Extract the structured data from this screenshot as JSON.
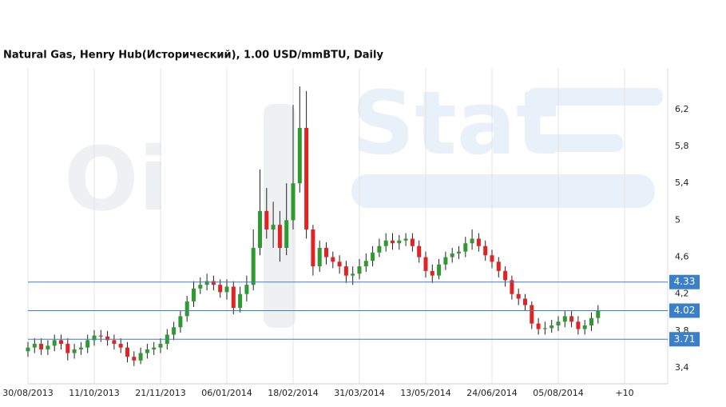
{
  "chart_data": {
    "type": "candlestick",
    "title": "Natural Gas, Henry Hub(Исторический), 1.00 USD/mmBTU, Daily",
    "watermark": [
      "Oi",
      "Stat"
    ],
    "categories": [
      "30/08/2013",
      null,
      null,
      null,
      null,
      null,
      null,
      null,
      null,
      null,
      "11/10/2013",
      null,
      null,
      null,
      null,
      null,
      null,
      null,
      null,
      null,
      "21/11/2013",
      null,
      null,
      null,
      null,
      null,
      null,
      null,
      null,
      null,
      "06/01/2014",
      null,
      null,
      null,
      null,
      null,
      null,
      null,
      null,
      null,
      "18/02/2014",
      null,
      null,
      null,
      null,
      null,
      null,
      null,
      null,
      null,
      "31/03/2014",
      null,
      null,
      null,
      null,
      null,
      null,
      null,
      null,
      null,
      "13/05/2014",
      null,
      null,
      null,
      null,
      null,
      null,
      null,
      null,
      null,
      "24/06/2014",
      null,
      null,
      null,
      null,
      null,
      null,
      null,
      null,
      null,
      "05/08/2014",
      null,
      null,
      null,
      null,
      null,
      null,
      null,
      null,
      null,
      "+10"
    ],
    "open": [
      3.58,
      3.62,
      3.66,
      3.6,
      3.64,
      3.7,
      3.66,
      3.56,
      3.6,
      3.62,
      3.7,
      3.75,
      3.74,
      3.7,
      3.66,
      3.62,
      3.52,
      3.48,
      3.56,
      3.6,
      3.62,
      3.66,
      3.76,
      3.84,
      3.96,
      4.12,
      4.26,
      4.3,
      4.34,
      4.3,
      4.22,
      4.28,
      4.05,
      4.2,
      4.3,
      4.7,
      5.1,
      4.9,
      4.95,
      4.7,
      5.0,
      5.4,
      6.0,
      4.9,
      4.5,
      4.7,
      4.6,
      4.55,
      4.5,
      4.4,
      4.42,
      4.5,
      4.56,
      4.65,
      4.72,
      4.78,
      4.75,
      4.78,
      4.8,
      4.72,
      4.6,
      4.45,
      4.4,
      4.52,
      4.6,
      4.64,
      4.66,
      4.75,
      4.8,
      4.72,
      4.62,
      4.55,
      4.45,
      4.35,
      4.2,
      4.15,
      4.08,
      3.88,
      3.82,
      3.83,
      3.86,
      3.9,
      3.96,
      3.9,
      3.82,
      3.86,
      3.94,
      null,
      null,
      null,
      null
    ],
    "high": [
      3.68,
      3.72,
      3.72,
      3.7,
      3.76,
      3.76,
      3.72,
      3.66,
      3.68,
      3.76,
      3.81,
      3.81,
      3.8,
      3.76,
      3.72,
      3.68,
      3.58,
      3.62,
      3.66,
      3.68,
      3.72,
      3.82,
      3.9,
      4.02,
      4.18,
      4.34,
      4.38,
      4.42,
      4.4,
      4.36,
      4.36,
      4.34,
      4.28,
      4.4,
      4.9,
      5.55,
      5.35,
      5.2,
      5.1,
      5.4,
      6.25,
      6.45,
      6.4,
      4.95,
      4.78,
      4.76,
      4.66,
      4.62,
      4.56,
      4.5,
      4.58,
      4.64,
      4.72,
      4.8,
      4.86,
      4.86,
      4.84,
      4.86,
      4.86,
      4.78,
      4.66,
      4.52,
      4.58,
      4.66,
      4.7,
      4.72,
      4.82,
      4.9,
      4.86,
      4.78,
      4.68,
      4.6,
      4.5,
      4.4,
      4.26,
      4.2,
      4.12,
      3.94,
      3.9,
      3.92,
      3.96,
      4.02,
      4.02,
      3.96,
      3.92,
      4.0,
      4.08,
      null,
      null,
      null,
      null
    ],
    "low": [
      3.52,
      3.56,
      3.54,
      3.54,
      3.58,
      3.6,
      3.48,
      3.5,
      3.54,
      3.56,
      3.64,
      3.68,
      3.64,
      3.6,
      3.56,
      3.46,
      3.42,
      3.44,
      3.5,
      3.54,
      3.56,
      3.6,
      3.7,
      3.78,
      3.9,
      4.06,
      4.2,
      4.24,
      4.24,
      4.16,
      4.14,
      3.98,
      4.0,
      4.12,
      4.24,
      4.62,
      4.8,
      4.7,
      4.55,
      4.62,
      4.9,
      5.3,
      4.8,
      4.4,
      4.44,
      4.52,
      4.48,
      4.42,
      4.32,
      4.3,
      4.36,
      4.44,
      4.5,
      4.6,
      4.66,
      4.68,
      4.68,
      4.72,
      4.66,
      4.54,
      4.38,
      4.32,
      4.36,
      4.46,
      4.54,
      4.58,
      4.6,
      4.68,
      4.66,
      4.56,
      4.48,
      4.38,
      4.28,
      4.14,
      4.08,
      4.02,
      3.82,
      3.76,
      3.76,
      3.78,
      3.8,
      3.84,
      3.84,
      3.76,
      3.76,
      3.8,
      3.88,
      null,
      null,
      null,
      null
    ],
    "close": [
      3.62,
      3.66,
      3.6,
      3.64,
      3.7,
      3.66,
      3.56,
      3.6,
      3.62,
      3.7,
      3.75,
      3.74,
      3.7,
      3.66,
      3.62,
      3.52,
      3.48,
      3.56,
      3.6,
      3.62,
      3.66,
      3.76,
      3.84,
      3.96,
      4.12,
      4.26,
      4.3,
      4.34,
      4.3,
      4.22,
      4.28,
      4.05,
      4.2,
      4.3,
      4.7,
      5.1,
      4.9,
      4.95,
      4.7,
      5.0,
      5.4,
      6.0,
      4.9,
      4.5,
      4.7,
      4.6,
      4.55,
      4.5,
      4.4,
      4.42,
      4.5,
      4.56,
      4.65,
      4.72,
      4.78,
      4.75,
      4.78,
      4.8,
      4.72,
      4.6,
      4.45,
      4.4,
      4.52,
      4.6,
      4.64,
      4.66,
      4.75,
      4.8,
      4.72,
      4.62,
      4.55,
      4.45,
      4.35,
      4.2,
      4.15,
      4.08,
      3.88,
      3.82,
      3.83,
      3.86,
      3.9,
      3.96,
      3.9,
      3.82,
      3.86,
      3.94,
      4.02,
      null,
      null,
      null,
      null
    ],
    "up_color": "#2f9a2f",
    "down_color": "#e32222",
    "levels": [
      4.33,
      4.02,
      3.71
    ],
    "level_color": "#3a7fc8",
    "ylim": [
      3.227,
      6.65
    ],
    "yticks": [
      {
        "value": 3.4,
        "label": "3,4"
      },
      {
        "value": 3.8,
        "label": "3,8"
      },
      {
        "value": 4.2,
        "label": "4,2"
      },
      {
        "value": 4.6,
        "label": "4,6"
      },
      5,
      {
        "value": 5.4,
        "label": "5,4"
      },
      {
        "value": 5.8,
        "label": "5,8"
      },
      {
        "value": 6.2,
        "label": "6,2"
      }
    ],
    "grid": true
  }
}
